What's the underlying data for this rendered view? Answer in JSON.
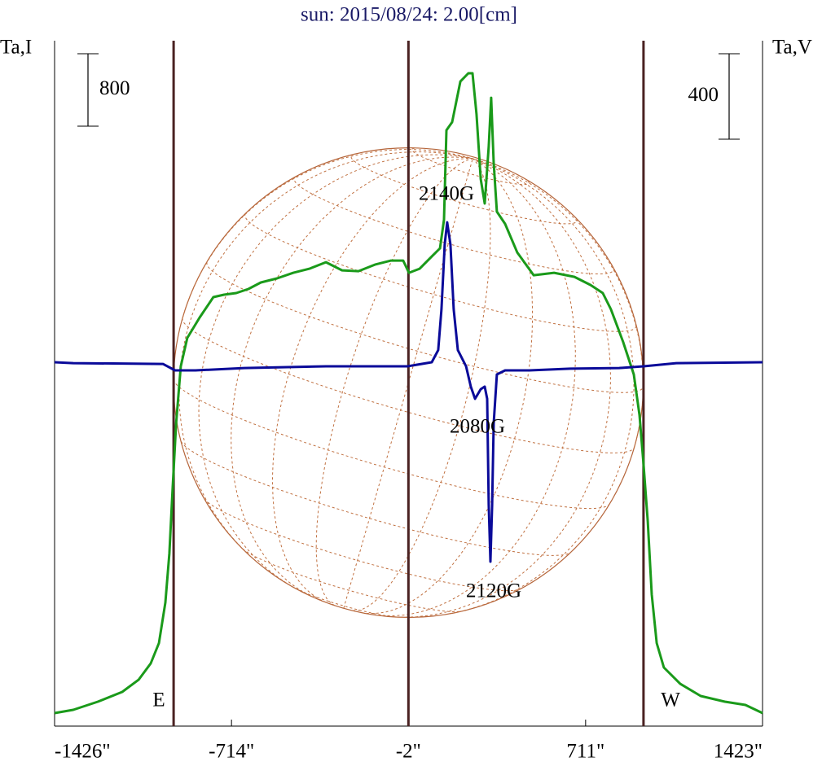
{
  "chart_data": {
    "type": "line",
    "title": "sun: 2015/08/24: 2.00[cm]",
    "y_label": "Ta,I",
    "y2_label": "Ta,V",
    "xlim": [
      -1426,
      1423
    ],
    "xticks": [
      {
        "value": -1426,
        "label": "-1426\""
      },
      {
        "value": -714,
        "label": "-714\""
      },
      {
        "value": -2,
        "label": "-2\""
      },
      {
        "value": 711,
        "label": "711\""
      },
      {
        "value": 1423,
        "label": "1423\""
      }
    ],
    "ylim": [
      0,
      7570
    ],
    "y2lim": [
      -1703,
      1505
    ],
    "y_scale_bar": 800,
    "y2_scale_bar": 400,
    "vlines": [
      -947,
      -2,
      944
    ],
    "annotations": [
      "2140G",
      "2080G",
      "2120G",
      "E",
      "W"
    ],
    "series": [
      {
        "color": "#1a9a1a",
        "x": [
          -1426,
          -1351,
          -1252,
          -1154,
          -1088,
          -1039,
          -1006,
          -980,
          -964,
          -951,
          -937,
          -918,
          -892,
          -842,
          -787,
          -744,
          -695,
          -646,
          -596,
          -531,
          -465,
          -400,
          -334,
          -269,
          -203,
          -137,
          -72,
          -23,
          0,
          43,
          92,
          125,
          141,
          151,
          174,
          207,
          239,
          256,
          272,
          289,
          305,
          321,
          331,
          341,
          354,
          387,
          436,
          502,
          584,
          666,
          731,
          780,
          813,
          862,
          905,
          928,
          944,
          961,
          977,
          997,
          1026,
          1092,
          1174,
          1272,
          1354,
          1423
        ],
        "values": [
          144,
          180,
          270,
          378,
          512,
          692,
          917,
          1366,
          1906,
          2625,
          3344,
          3974,
          4288,
          4513,
          4738,
          4765,
          4783,
          4828,
          4900,
          4945,
          5007,
          5052,
          5124,
          5034,
          5025,
          5097,
          5142,
          5142,
          5007,
          5052,
          5187,
          5277,
          5592,
          6581,
          6671,
          7120,
          7210,
          7210,
          6760,
          6042,
          5772,
          6401,
          6940,
          6221,
          5682,
          5547,
          5232,
          4980,
          5007,
          4962,
          4872,
          4783,
          4603,
          4243,
          3884,
          3434,
          2895,
          2265,
          1456,
          917,
          647,
          467,
          333,
          270,
          234,
          144
        ]
      },
      {
        "color": "#0a0a99",
        "axis": "y2",
        "x": [
          -1426,
          -1351,
          -990,
          -941,
          -859,
          -662,
          -334,
          -6,
          92,
          118,
          131,
          144,
          154,
          167,
          180,
          197,
          230,
          249,
          266,
          289,
          305,
          315,
          321,
          328,
          335,
          341,
          354,
          387,
          485,
          649,
          846,
          944,
          1076,
          1423
        ],
        "values": [
          0,
          -4,
          -8,
          -38,
          -38,
          -27,
          -19,
          -19,
          0,
          57,
          248,
          552,
          655,
          552,
          248,
          57,
          -19,
          -114,
          -171,
          -126,
          -114,
          -171,
          -667,
          -933,
          -667,
          -286,
          -57,
          -38,
          -38,
          -30,
          -27,
          -19,
          -4,
          0
        ]
      }
    ]
  }
}
